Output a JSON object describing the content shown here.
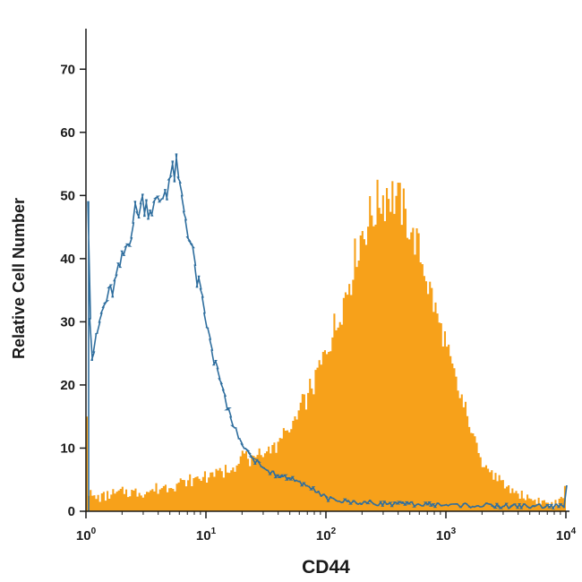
{
  "chart_data": {
    "type": "histogram",
    "xlabel": "CD44",
    "ylabel": "Relative Cell Number",
    "x_scale": "log",
    "xlim": [
      1,
      10000
    ],
    "ylim": [
      0,
      75
    ],
    "y_ticks": [
      0,
      10,
      20,
      30,
      40,
      50,
      60,
      70
    ],
    "x_ticks": [
      {
        "value": 1,
        "base": "10",
        "exp": "0"
      },
      {
        "value": 10,
        "base": "10",
        "exp": "1"
      },
      {
        "value": 100,
        "base": "10",
        "exp": "2"
      },
      {
        "value": 1000,
        "base": "10",
        "exp": "3"
      },
      {
        "value": 10000,
        "base": "10",
        "exp": "4"
      }
    ],
    "grid": false,
    "legend": "none",
    "series": [
      {
        "style": "filled",
        "color": "#F7A11A",
        "points": [
          [
            1.0,
            15
          ],
          [
            1.05,
            3
          ],
          [
            1.2,
            2
          ],
          [
            1.5,
            2.5
          ],
          [
            2,
            3
          ],
          [
            3,
            3
          ],
          [
            5,
            4
          ],
          [
            8,
            5
          ],
          [
            12,
            6
          ],
          [
            17,
            7
          ],
          [
            20,
            9
          ],
          [
            25,
            8
          ],
          [
            35,
            10
          ],
          [
            50,
            13
          ],
          [
            70,
            18
          ],
          [
            100,
            25
          ],
          [
            150,
            35
          ],
          [
            200,
            44
          ],
          [
            280,
            49
          ],
          [
            350,
            51
          ],
          [
            450,
            47
          ],
          [
            600,
            41
          ],
          [
            800,
            33
          ],
          [
            1000,
            26
          ],
          [
            1500,
            15
          ],
          [
            2000,
            8
          ],
          [
            3000,
            4
          ],
          [
            5000,
            2
          ],
          [
            8000,
            1
          ],
          [
            9800,
            2
          ],
          [
            10000,
            4
          ]
        ]
      },
      {
        "style": "outline",
        "color": "#2F6E9E",
        "points": [
          [
            1.0,
            49
          ],
          [
            1.08,
            24
          ],
          [
            1.2,
            28
          ],
          [
            1.4,
            33
          ],
          [
            1.7,
            36
          ],
          [
            2,
            40
          ],
          [
            2.5,
            47
          ],
          [
            3,
            49
          ],
          [
            3.5,
            48
          ],
          [
            4,
            49
          ],
          [
            5,
            53
          ],
          [
            5.5,
            54
          ],
          [
            6,
            50
          ],
          [
            7,
            44
          ],
          [
            8,
            38
          ],
          [
            9.5,
            31
          ],
          [
            11,
            25
          ],
          [
            13,
            20
          ],
          [
            15,
            16
          ],
          [
            18,
            12
          ],
          [
            22,
            9
          ],
          [
            28,
            7
          ],
          [
            35,
            6
          ],
          [
            50,
            5
          ],
          [
            70,
            4
          ],
          [
            100,
            2
          ],
          [
            150,
            1.5
          ],
          [
            300,
            1.2
          ],
          [
            1000,
            1
          ],
          [
            3000,
            0.8
          ],
          [
            9800,
            0.8
          ],
          [
            10000,
            4
          ]
        ]
      }
    ]
  }
}
